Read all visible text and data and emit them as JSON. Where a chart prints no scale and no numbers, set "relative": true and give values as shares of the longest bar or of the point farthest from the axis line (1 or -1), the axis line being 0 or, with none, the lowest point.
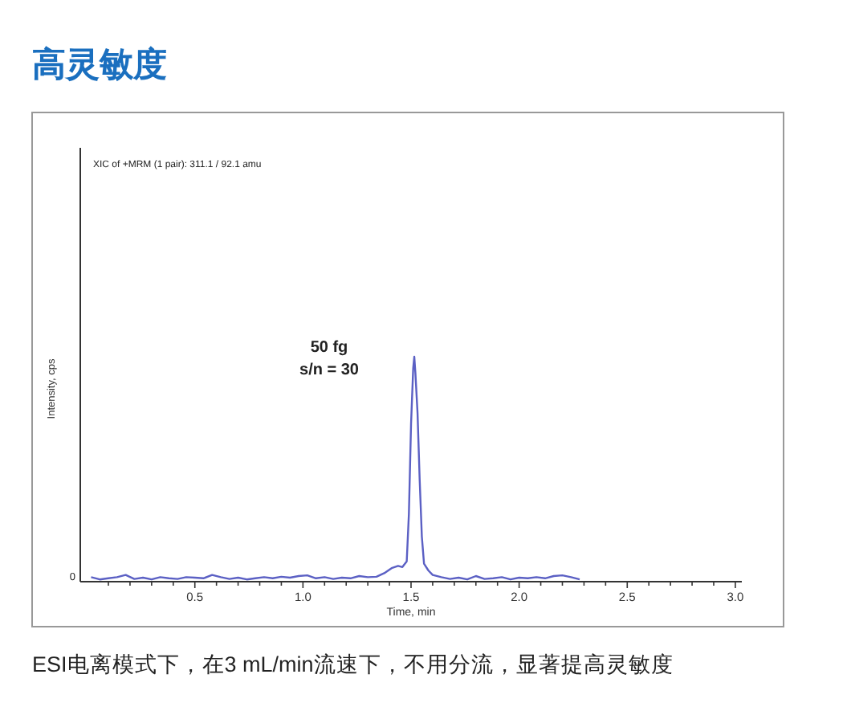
{
  "chart_data": {
    "type": "line",
    "title": "高灵敏度",
    "xlabel": "Time, min",
    "ylabel": "Intensity, cps",
    "annotations": [
      "XIC of +MRM (1 pair): 311.1 / 92.1 amu",
      "50 fg",
      "s/n = 30",
      "0",
      "ESI电离模式下，在3 mL/min流速下，不用分流，显著提高灵敏度"
    ],
    "relative": true,
    "xlim": [
      -0.03,
      3.03
    ],
    "xticks": [
      {
        "value": 0.1,
        "label": null
      },
      {
        "value": 0.2,
        "label": null
      },
      {
        "value": 0.3,
        "label": null
      },
      {
        "value": 0.4,
        "label": null
      },
      {
        "value": 0.5,
        "label": "0.5"
      },
      {
        "value": 0.6,
        "label": null
      },
      {
        "value": 0.7,
        "label": null
      },
      {
        "value": 0.8,
        "label": null
      },
      {
        "value": 0.9,
        "label": null
      },
      {
        "value": 1,
        "label": "1.0"
      },
      {
        "value": 1.1,
        "label": null
      },
      {
        "value": 1.2,
        "label": null
      },
      {
        "value": 1.3,
        "label": null
      },
      {
        "value": 1.4,
        "label": null
      },
      {
        "value": 1.5,
        "label": "1.5"
      },
      {
        "value": 1.6,
        "label": null
      },
      {
        "value": 1.7,
        "label": null
      },
      {
        "value": 1.8,
        "label": null
      },
      {
        "value": 1.9,
        "label": null
      },
      {
        "value": 2,
        "label": "2.0"
      },
      {
        "value": 2.1,
        "label": null
      },
      {
        "value": 2.2,
        "label": null
      },
      {
        "value": 2.3,
        "label": null
      },
      {
        "value": 2.4,
        "label": null
      },
      {
        "value": 2.5,
        "label": "2.5"
      },
      {
        "value": 2.6,
        "label": null
      },
      {
        "value": 2.7,
        "label": null
      },
      {
        "value": 2.8,
        "label": null
      },
      {
        "value": 2.9,
        "label": null
      },
      {
        "value": 3,
        "label": "3.0"
      }
    ],
    "series": [
      {
        "color": "#5b60c4",
        "x": [
          0.02,
          0.06,
          0.1,
          0.14,
          0.18,
          0.22,
          0.26,
          0.3,
          0.34,
          0.38,
          0.42,
          0.46,
          0.5,
          0.54,
          0.58,
          0.62,
          0.66,
          0.7,
          0.74,
          0.78,
          0.82,
          0.86,
          0.9,
          0.94,
          0.98,
          1.02,
          1.06,
          1.1,
          1.14,
          1.18,
          1.22,
          1.26,
          1.3,
          1.34,
          1.38,
          1.41,
          1.44,
          1.46,
          1.48,
          1.49,
          1.5,
          1.51,
          1.515,
          1.52,
          1.53,
          1.54,
          1.55,
          1.56,
          1.58,
          1.6,
          1.64,
          1.68,
          1.72,
          1.76,
          1.8,
          1.84,
          1.88,
          1.92,
          1.96,
          2.0,
          2.04,
          2.08,
          2.12,
          2.16,
          2.2,
          2.24,
          2.28
        ],
        "values": [
          0.02,
          0.01,
          0.015,
          0.02,
          0.03,
          0.012,
          0.018,
          0.01,
          0.02,
          0.015,
          0.012,
          0.02,
          0.018,
          0.015,
          0.03,
          0.02,
          0.012,
          0.018,
          0.01,
          0.015,
          0.02,
          0.015,
          0.022,
          0.018,
          0.025,
          0.028,
          0.015,
          0.02,
          0.012,
          0.018,
          0.015,
          0.025,
          0.02,
          0.022,
          0.04,
          0.06,
          0.07,
          0.065,
          0.09,
          0.3,
          0.7,
          0.95,
          1.0,
          0.93,
          0.75,
          0.45,
          0.2,
          0.08,
          0.05,
          0.03,
          0.02,
          0.012,
          0.018,
          0.01,
          0.025,
          0.012,
          0.015,
          0.02,
          0.01,
          0.018,
          0.015,
          0.02,
          0.015,
          0.025,
          0.028,
          0.02,
          0.01
        ]
      }
    ]
  }
}
